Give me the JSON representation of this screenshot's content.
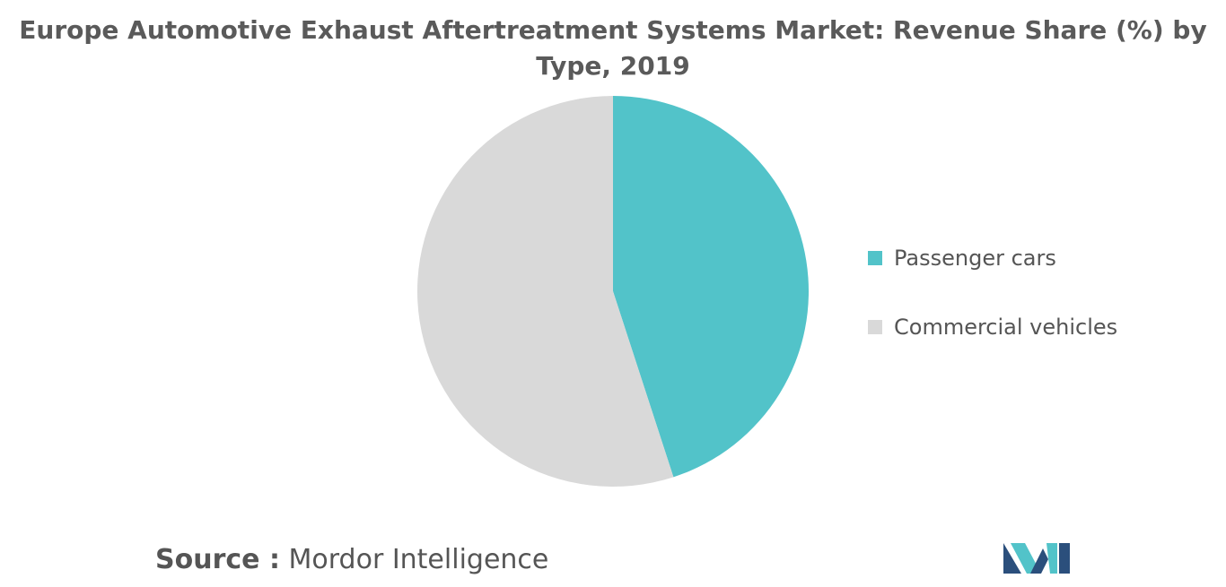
{
  "chart_data": {
    "type": "pie",
    "title": "Europe Automotive Exhaust Aftertreatment Systems Market: Revenue Share (%) by Type, 2019",
    "categories": [
      "Passenger cars",
      "Commercial vehicles"
    ],
    "values": [
      45,
      55
    ],
    "colors": [
      "#52c3c9",
      "#d9d9d9"
    ],
    "source_label": "Source :",
    "source": "Mordor Intelligence"
  }
}
